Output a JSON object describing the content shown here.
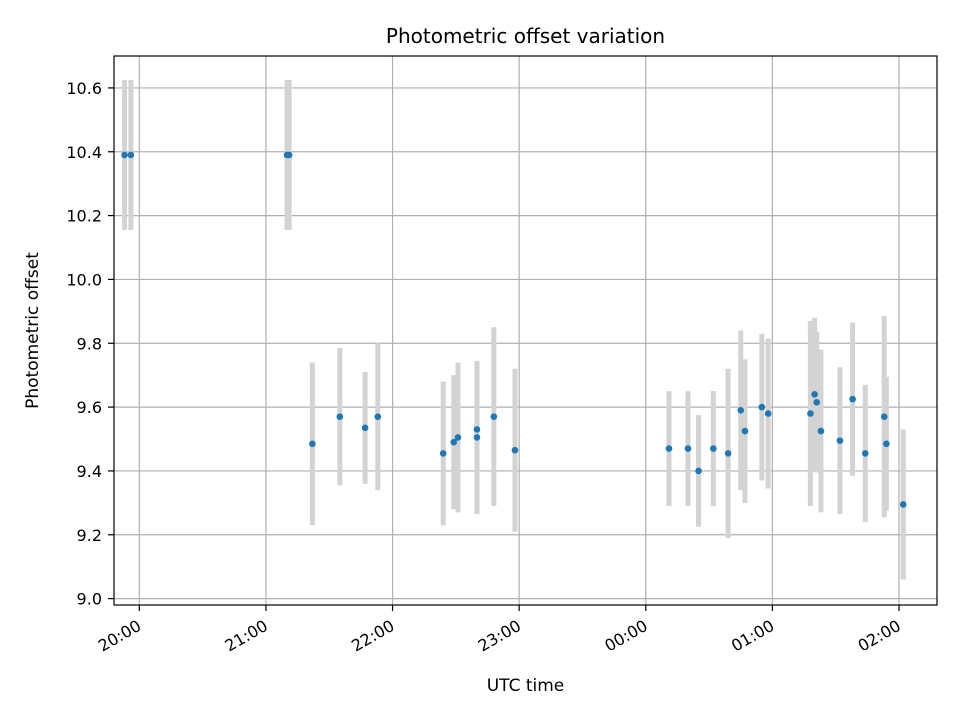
{
  "chart_data": {
    "type": "scatter",
    "title": "Photometric offset variation",
    "xlabel": "UTC time",
    "ylabel": "Photometric offset",
    "xlim": [
      "19:48",
      "02:18"
    ],
    "ylim": [
      8.98,
      10.7
    ],
    "grid": true,
    "x_ticks": [
      "20:00",
      "21:00",
      "22:00",
      "23:00",
      "00:00",
      "01:00",
      "02:00"
    ],
    "y_ticks": [
      "9.0",
      "9.2",
      "9.4",
      "9.6",
      "9.8",
      "10.0",
      "10.2",
      "10.4",
      "10.6"
    ],
    "colors": {
      "point": "#1f77b4",
      "errorbar": "#d3d3d3",
      "grid": "#b0b0b0",
      "axes": "#000000"
    },
    "points": [
      {
        "time": "19:53",
        "y": 10.39,
        "err": 0.235
      },
      {
        "time": "19:56",
        "y": 10.39,
        "err": 0.235
      },
      {
        "time": "21:10",
        "y": 10.39,
        "err": 0.235
      },
      {
        "time": "21:11",
        "y": 10.39,
        "err": 0.235
      },
      {
        "time": "21:22",
        "y": 9.485,
        "err": 0.255
      },
      {
        "time": "21:35",
        "y": 9.57,
        "err": 0.215
      },
      {
        "time": "21:47",
        "y": 9.535,
        "err": 0.175
      },
      {
        "time": "21:53",
        "y": 9.57,
        "err": 0.23
      },
      {
        "time": "22:24",
        "y": 9.455,
        "err": 0.225
      },
      {
        "time": "22:29",
        "y": 9.49,
        "err": 0.21
      },
      {
        "time": "22:31",
        "y": 9.505,
        "err": 0.235
      },
      {
        "time": "22:40",
        "y": 9.53,
        "err": 0.215
      },
      {
        "time": "22:40",
        "y": 9.505,
        "err": 0.24
      },
      {
        "time": "22:48",
        "y": 9.57,
        "err": 0.28
      },
      {
        "time": "22:58",
        "y": 9.465,
        "err": 0.255
      },
      {
        "time": "00:11",
        "y": 9.47,
        "err": 0.18
      },
      {
        "time": "00:20",
        "y": 9.47,
        "err": 0.18
      },
      {
        "time": "00:25",
        "y": 9.4,
        "err": 0.175
      },
      {
        "time": "00:32",
        "y": 9.47,
        "err": 0.18
      },
      {
        "time": "00:39",
        "y": 9.455,
        "err": 0.265
      },
      {
        "time": "00:45",
        "y": 9.59,
        "err": 0.25
      },
      {
        "time": "00:47",
        "y": 9.525,
        "err": 0.225
      },
      {
        "time": "00:55",
        "y": 9.6,
        "err": 0.23
      },
      {
        "time": "00:58",
        "y": 9.58,
        "err": 0.235
      },
      {
        "time": "01:18",
        "y": 9.58,
        "err": 0.29
      },
      {
        "time": "01:20",
        "y": 9.64,
        "err": 0.24
      },
      {
        "time": "01:21",
        "y": 9.615,
        "err": 0.22
      },
      {
        "time": "01:23",
        "y": 9.525,
        "err": 0.255
      },
      {
        "time": "01:32",
        "y": 9.495,
        "err": 0.23
      },
      {
        "time": "01:38",
        "y": 9.625,
        "err": 0.24
      },
      {
        "time": "01:44",
        "y": 9.455,
        "err": 0.215
      },
      {
        "time": "01:53",
        "y": 9.57,
        "err": 0.315
      },
      {
        "time": "01:54",
        "y": 9.485,
        "err": 0.21
      },
      {
        "time": "02:02",
        "y": 9.295,
        "err": 0.235
      }
    ]
  }
}
